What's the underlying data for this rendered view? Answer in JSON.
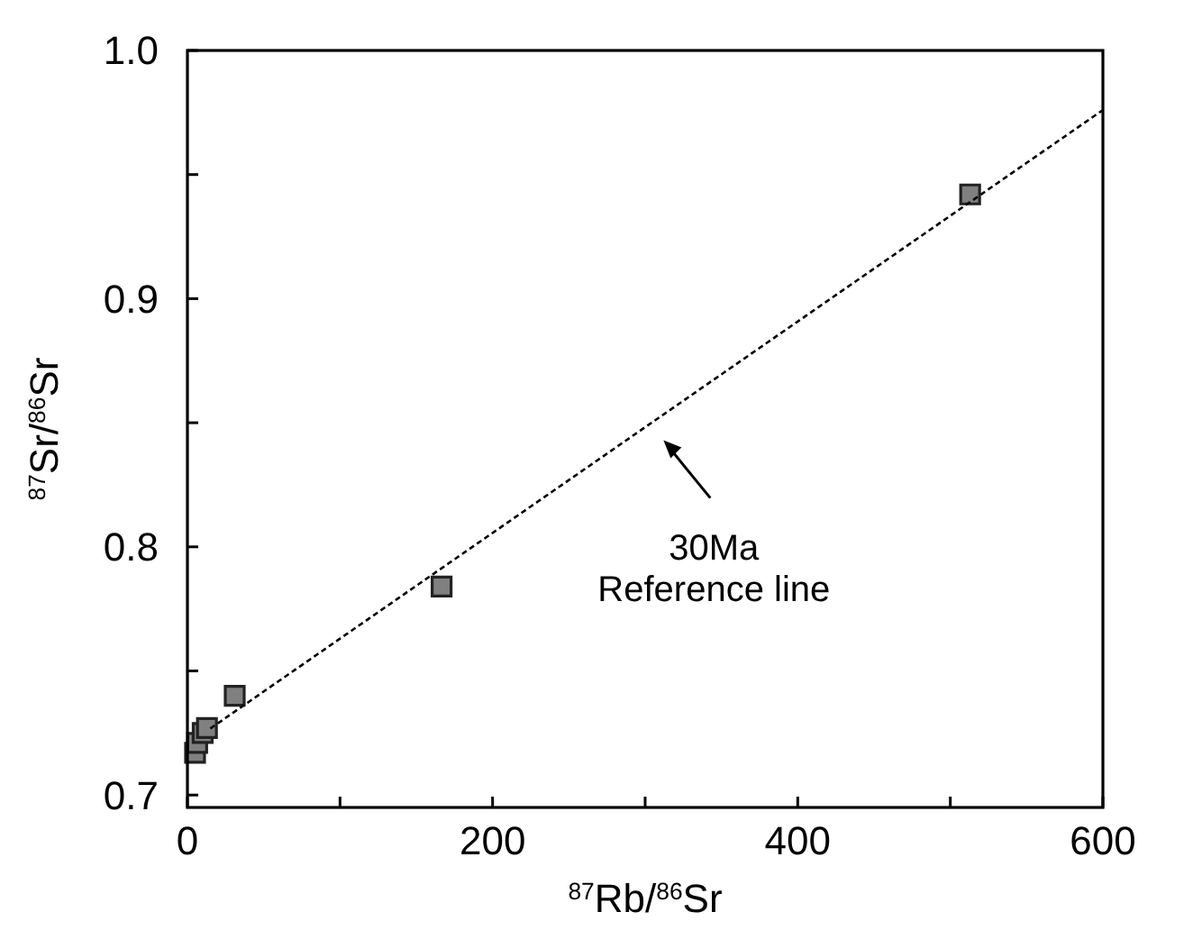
{
  "chart_data": {
    "type": "scatter",
    "xlabel": "$^{87}$Rb/$^{86}$Sr",
    "ylabel": "$^{87}$Sr/$^{86}$Sr",
    "x": [
      5,
      6.4,
      10,
      12.8,
      31,
      166.6,
      513
    ],
    "series": [
      {
        "color": "#808080",
        "marker": "square",
        "values": [
          0.717,
          0.721,
          0.725,
          0.727,
          0.74,
          0.784,
          0.942
        ]
      },
      {
        "type": "line",
        "color": "#000000",
        "line_style": "dotted",
        "marker": "none",
        "x": [
          15,
          600
        ],
        "values": [
          0.7268,
          0.976
        ]
      }
    ],
    "xlim": [
      0,
      600
    ],
    "xticks": [
      0,
      {
        "value": 100,
        "label": null
      },
      200,
      {
        "value": 300,
        "label": null
      },
      400,
      {
        "value": 500,
        "label": null
      },
      600
    ],
    "ylim": [
      0.695,
      1.0
    ],
    "yticks": [
      0.7,
      {
        "value": 0.75,
        "label": null
      },
      0.8,
      {
        "value": 0.85,
        "label": null
      },
      0.9,
      {
        "value": 0.95,
        "label": null
      },
      {
        "value": 1.0,
        "label": "1.0"
      }
    ],
    "annotations": [
      "30Ma\nReference line"
    ],
    "grid": false
  }
}
